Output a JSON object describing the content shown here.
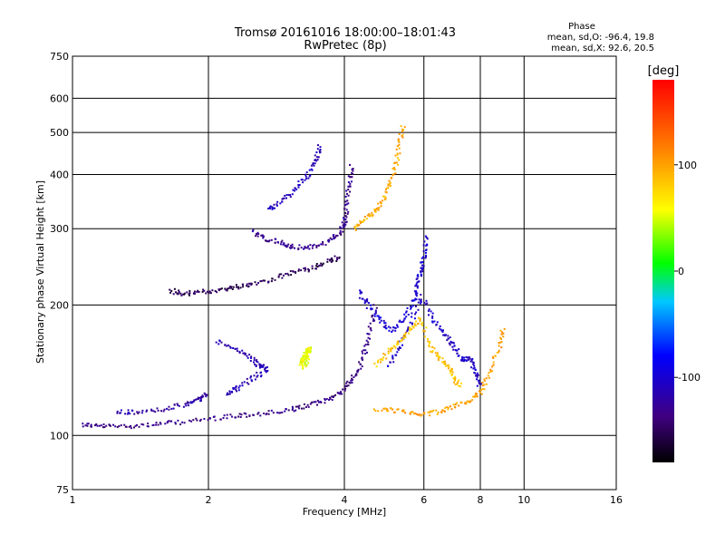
{
  "chart_data": {
    "type": "scatter",
    "title": "Tromsø 20161016 18:00:00–18:01:43",
    "subtitle": "RwPretec (8p)",
    "xlabel": "Frequency [MHz]",
    "ylabel": "Stationary phase Virtual Height [km]",
    "x_scale": "log",
    "y_scale": "log",
    "xlim": [
      1,
      16
    ],
    "ylim": [
      75,
      750
    ],
    "x_ticks": [
      "1",
      "2",
      "4",
      "6",
      "8",
      "10",
      "16"
    ],
    "x_tick_values": [
      1,
      2,
      4,
      6,
      8,
      10,
      16
    ],
    "y_ticks": [
      "75",
      "100",
      "200",
      "300",
      "400",
      "500",
      "600",
      "750"
    ],
    "y_tick_values": [
      75,
      100,
      200,
      300,
      400,
      500,
      600,
      750
    ],
    "grid": true,
    "colorbar": {
      "label": "[deg]",
      "range": [
        -180,
        180
      ],
      "ticks": [
        "100",
        "0",
        "-100"
      ],
      "tick_values": [
        100,
        0,
        -100
      ]
    },
    "stats": {
      "heading": "Phase",
      "line_o": "mean, sd,O: -96.4, 19.8",
      "line_x": "mean, sd,X:  92.6, 20.5"
    },
    "traces": [
      {
        "name": "",
        "phase": -135,
        "points": [
          [
            1.05,
            106
          ],
          [
            1.15,
            105
          ],
          [
            1.3,
            105
          ],
          [
            1.5,
            106
          ],
          [
            1.7,
            107
          ],
          [
            2.0,
            109
          ],
          [
            2.3,
            111
          ],
          [
            2.6,
            112
          ],
          [
            3.0,
            114
          ],
          [
            3.3,
            117
          ],
          [
            3.6,
            120
          ],
          [
            3.9,
            125
          ],
          [
            4.1,
            132
          ],
          [
            4.3,
            142
          ],
          [
            4.45,
            158
          ],
          [
            4.55,
            175
          ],
          [
            4.7,
            200
          ]
        ]
      },
      {
        "name": "",
        "phase": -120,
        "points": [
          [
            1.25,
            113
          ],
          [
            1.4,
            113
          ],
          [
            1.6,
            115
          ],
          [
            1.8,
            118
          ],
          [
            1.9,
            121
          ],
          [
            2.0,
            125
          ]
        ]
      },
      {
        "name": "",
        "phase": -150,
        "points": [
          [
            1.65,
            216
          ],
          [
            1.75,
            212
          ],
          [
            1.9,
            214
          ],
          [
            2.1,
            216
          ],
          [
            2.3,
            220
          ],
          [
            2.5,
            224
          ],
          [
            2.8,
            230
          ],
          [
            3.1,
            238
          ],
          [
            3.4,
            243
          ],
          [
            3.7,
            252
          ],
          [
            3.9,
            258
          ]
        ]
      },
      {
        "name": "",
        "phase": -130,
        "points": [
          [
            2.5,
            295
          ],
          [
            2.7,
            284
          ],
          [
            2.9,
            278
          ],
          [
            3.1,
            272
          ],
          [
            3.4,
            272
          ],
          [
            3.7,
            280
          ],
          [
            3.9,
            292
          ],
          [
            4.0,
            310
          ],
          [
            4.05,
            340
          ],
          [
            4.1,
            380
          ],
          [
            4.15,
            420
          ]
        ]
      },
      {
        "name": "",
        "phase": -110,
        "points": [
          [
            2.7,
            330
          ],
          [
            2.9,
            345
          ],
          [
            3.1,
            370
          ],
          [
            3.3,
            395
          ],
          [
            3.45,
            430
          ],
          [
            3.55,
            470
          ]
        ]
      },
      {
        "name": "",
        "phase": -115,
        "points": [
          [
            2.1,
            165
          ],
          [
            2.3,
            158
          ],
          [
            2.5,
            150
          ],
          [
            2.6,
            145
          ],
          [
            2.7,
            142
          ],
          [
            2.5,
            135
          ],
          [
            2.3,
            128
          ],
          [
            2.2,
            125
          ]
        ]
      },
      {
        "name": "",
        "phase": -100,
        "points": [
          [
            4.3,
            215
          ],
          [
            4.5,
            200
          ],
          [
            4.8,
            185
          ],
          [
            5.1,
            175
          ],
          [
            5.4,
            185
          ],
          [
            5.7,
            205
          ],
          [
            5.8,
            225
          ],
          [
            5.9,
            240
          ],
          [
            6.0,
            260
          ],
          [
            6.1,
            290
          ]
        ]
      },
      {
        "name": "",
        "phase": -105,
        "points": [
          [
            5.0,
            145
          ],
          [
            5.3,
            160
          ],
          [
            5.6,
            180
          ],
          [
            5.9,
            210
          ],
          [
            6.3,
            185
          ],
          [
            6.7,
            170
          ],
          [
            7.0,
            160
          ],
          [
            7.3,
            150
          ],
          [
            7.6,
            150
          ],
          [
            7.8,
            140
          ],
          [
            8.0,
            130
          ]
        ]
      },
      {
        "name": "",
        "phase": 95,
        "points": [
          [
            4.2,
            300
          ],
          [
            4.45,
            315
          ],
          [
            4.7,
            330
          ],
          [
            4.9,
            350
          ],
          [
            5.05,
            380
          ],
          [
            5.2,
            420
          ],
          [
            5.3,
            470
          ],
          [
            5.4,
            520
          ]
        ]
      },
      {
        "name": "",
        "phase": 100,
        "points": [
          [
            4.7,
            115
          ],
          [
            5.2,
            114
          ],
          [
            5.8,
            112
          ],
          [
            6.4,
            113
          ],
          [
            7.0,
            117
          ],
          [
            7.6,
            120
          ],
          [
            8.0,
            126
          ],
          [
            8.4,
            140
          ],
          [
            8.8,
            160
          ],
          [
            9.0,
            175
          ]
        ]
      },
      {
        "name": "",
        "phase": 85,
        "points": [
          [
            4.7,
            145
          ],
          [
            5.0,
            155
          ],
          [
            5.3,
            165
          ],
          [
            5.6,
            175
          ],
          [
            5.9,
            185
          ],
          [
            6.2,
            160
          ],
          [
            6.5,
            150
          ],
          [
            6.8,
            145
          ],
          [
            7.0,
            135
          ],
          [
            7.2,
            130
          ]
        ]
      },
      {
        "name": "",
        "phase": 55,
        "points": [
          [
            3.2,
            145
          ],
          [
            3.25,
            150
          ],
          [
            3.3,
            155
          ],
          [
            3.35,
            160
          ],
          [
            3.3,
            150
          ],
          [
            3.25,
            142
          ]
        ]
      }
    ]
  }
}
